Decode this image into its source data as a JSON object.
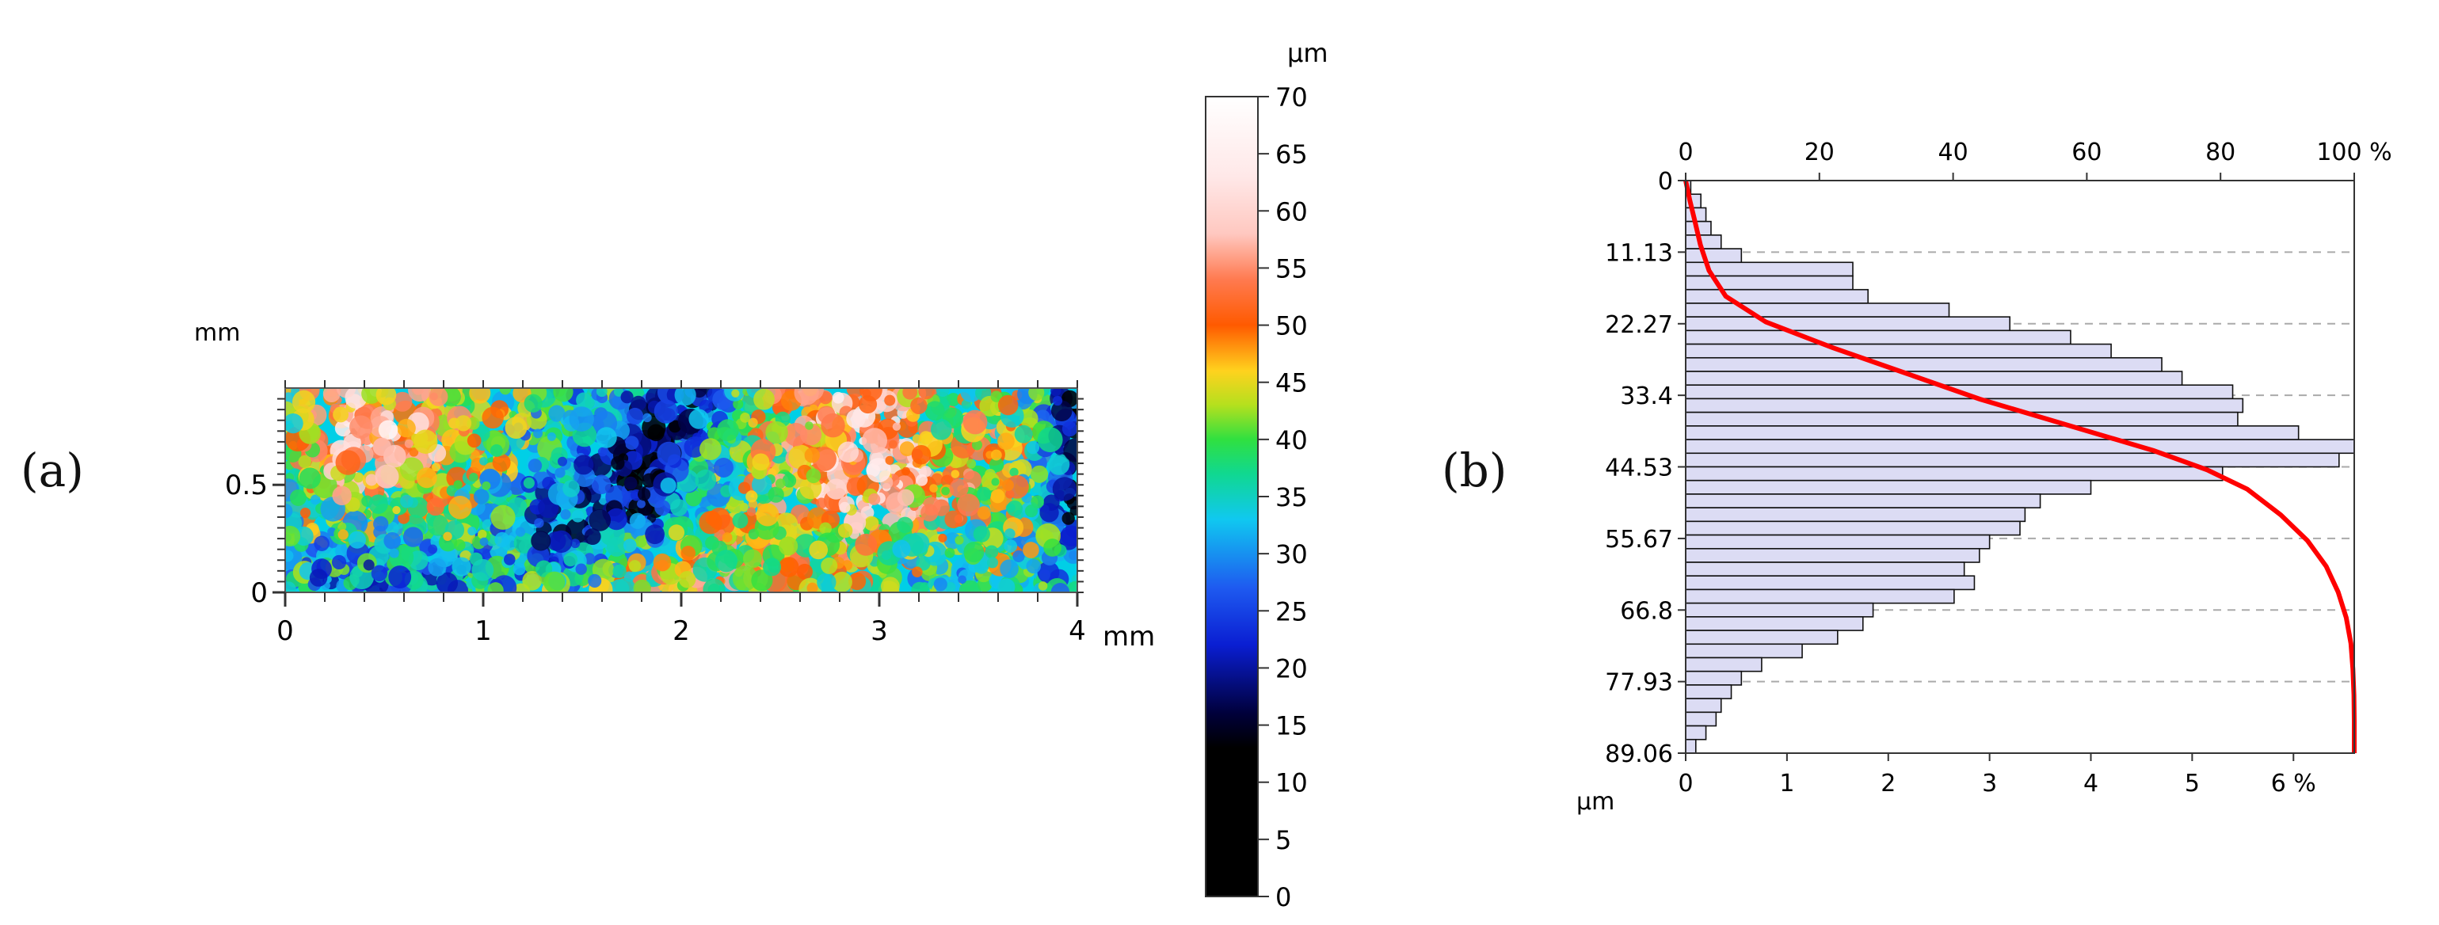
{
  "panel_labels": {
    "a": "(a)",
    "b": "(b)"
  },
  "chart_data": [
    {
      "type": "heatmap",
      "x_unit": "mm",
      "y_unit": "mm",
      "x_ticks": [
        "0",
        "1",
        "2",
        "3",
        "4"
      ],
      "y_ticks": [
        "0",
        "0.5"
      ],
      "xlim": [
        0,
        4
      ],
      "ylim": [
        0,
        0.95
      ],
      "colorbar": {
        "unit": "µm",
        "range": [
          0,
          70
        ],
        "ticks": [
          "0",
          "5",
          "10",
          "15",
          "20",
          "25",
          "30",
          "35",
          "40",
          "45",
          "50",
          "55",
          "60",
          "65",
          "70"
        ],
        "stops": [
          {
            "v": 0,
            "color": "#000000"
          },
          {
            "v": 13,
            "color": "#000000"
          },
          {
            "v": 16,
            "color": "#00003a"
          },
          {
            "v": 22,
            "color": "#0a1ed2"
          },
          {
            "v": 27,
            "color": "#1e5af0"
          },
          {
            "v": 33,
            "color": "#10c8f0"
          },
          {
            "v": 37,
            "color": "#10d890"
          },
          {
            "v": 40,
            "color": "#30e040"
          },
          {
            "v": 43,
            "color": "#b4e01e"
          },
          {
            "v": 46,
            "color": "#ffd21e"
          },
          {
            "v": 50,
            "color": "#ff5a00"
          },
          {
            "v": 54,
            "color": "#ff7a50"
          },
          {
            "v": 58,
            "color": "#ffc8c0"
          },
          {
            "v": 63,
            "color": "#ffe8e8"
          },
          {
            "v": 70,
            "color": "#ffffff"
          }
        ]
      }
    },
    {
      "type": "bar",
      "orientation": "horizontal",
      "y_unit": "µm",
      "y_ticks": [
        "0",
        "11.13",
        "22.27",
        "33.4",
        "44.53",
        "55.67",
        "66.8",
        "77.93",
        "89.06"
      ],
      "ylim": [
        0,
        89.06
      ],
      "bar_axis_ticks": [
        "0",
        "1",
        "2",
        "3",
        "4",
        "5",
        "6 %"
      ],
      "bar_axis_range": [
        0,
        6.6
      ],
      "cumulative_axis_ticks": [
        "0",
        "20",
        "40",
        "60",
        "80",
        "100 %"
      ],
      "cumulative_axis_range": [
        0,
        100
      ],
      "grid": "dashed horizontal",
      "bars": [
        0.05,
        0.15,
        0.2,
        0.25,
        0.35,
        0.55,
        1.65,
        1.65,
        1.8,
        2.6,
        3.2,
        3.8,
        4.2,
        4.7,
        4.9,
        5.4,
        5.5,
        5.45,
        6.05,
        6.6,
        6.45,
        5.3,
        4.0,
        3.5,
        3.35,
        3.3,
        3.0,
        2.9,
        2.75,
        2.85,
        2.65,
        1.85,
        1.75,
        1.5,
        1.15,
        0.75,
        0.55,
        0.45,
        0.35,
        0.3,
        0.2,
        0.1
      ],
      "cumulative": {
        "color": "#ff0000",
        "y": [
          0,
          3,
          6,
          10,
          14,
          18,
          22,
          26,
          30,
          34,
          38,
          42,
          45,
          48,
          52,
          56,
          60,
          64,
          68,
          72,
          76,
          80,
          84,
          89.06
        ],
        "pct": [
          0,
          0.6,
          1.3,
          2.2,
          3.5,
          6,
          12,
          22,
          33,
          44,
          57,
          70,
          78,
          84,
          89,
          93,
          95.8,
          97.6,
          98.8,
          99.5,
          99.8,
          99.95,
          100,
          100
        ]
      }
    }
  ]
}
